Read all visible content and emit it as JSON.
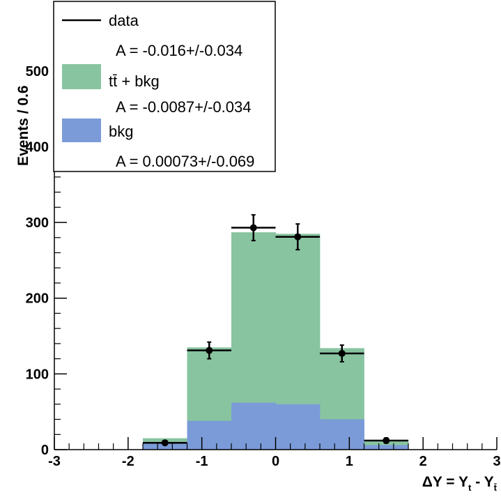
{
  "chart_data": {
    "type": "bar",
    "bin_edges": [
      -3.0,
      -2.4,
      -1.8,
      -1.2,
      -0.6,
      0.0,
      0.6,
      1.2,
      1.8,
      2.4,
      3.0
    ],
    "series": [
      {
        "name": "tt̄ + bkg",
        "color": "#88c4a0",
        "values": [
          0,
          0,
          15,
          135,
          287,
          285,
          134,
          12,
          0,
          0
        ]
      },
      {
        "name": "bkg",
        "color": "#7b9bd8",
        "values": [
          0,
          0,
          8,
          38,
          62,
          60,
          40,
          6,
          0,
          0
        ]
      },
      {
        "name": "data",
        "color": "#000000",
        "x": [
          -1.5,
          -0.9,
          -0.3,
          0.3,
          0.9,
          1.5
        ],
        "values": [
          9,
          131,
          293,
          281,
          127,
          12
        ],
        "errors": [
          3,
          11,
          17,
          17,
          11,
          3.5
        ]
      }
    ],
    "xlim": [
      -3,
      3
    ],
    "ylim": [
      0,
      590
    ],
    "x_ticks": [
      {
        "value": -3,
        "label": "-3"
      },
      {
        "value": -2,
        "label": "-2"
      },
      {
        "value": -1,
        "label": "-1"
      },
      {
        "value": 0,
        "label": "0"
      },
      {
        "value": 1,
        "label": "1"
      },
      {
        "value": 2,
        "label": "2"
      },
      {
        "value": 3,
        "label": "3"
      }
    ],
    "y_ticks": [
      {
        "value": 0,
        "label": "0"
      },
      {
        "value": 100,
        "label": "100"
      },
      {
        "value": 200,
        "label": "200"
      },
      {
        "value": 300,
        "label": "300"
      },
      {
        "value": 400,
        "label": "400"
      },
      {
        "value": 500,
        "label": "500"
      }
    ],
    "ylabel": "Events / 0.6",
    "xlabel": {
      "main": "ΔY = Y",
      "sub1": "t",
      "mid": " - Y",
      "sub2": "t̄"
    },
    "legend": {
      "position": "top-left",
      "entries": [
        {
          "key": "data",
          "label": "data",
          "style": "line",
          "asym": "A = -0.016+/-0.034"
        },
        {
          "key": "ttbkg",
          "label_main": "tt̄",
          "label_rest": " + bkg",
          "style": "fill",
          "asym": "A = -0.0087+/-0.034"
        },
        {
          "key": "bkg",
          "label": "bkg",
          "style": "fill",
          "asym": "A = 0.00073+/-0.069"
        }
      ]
    },
    "grid": false
  }
}
